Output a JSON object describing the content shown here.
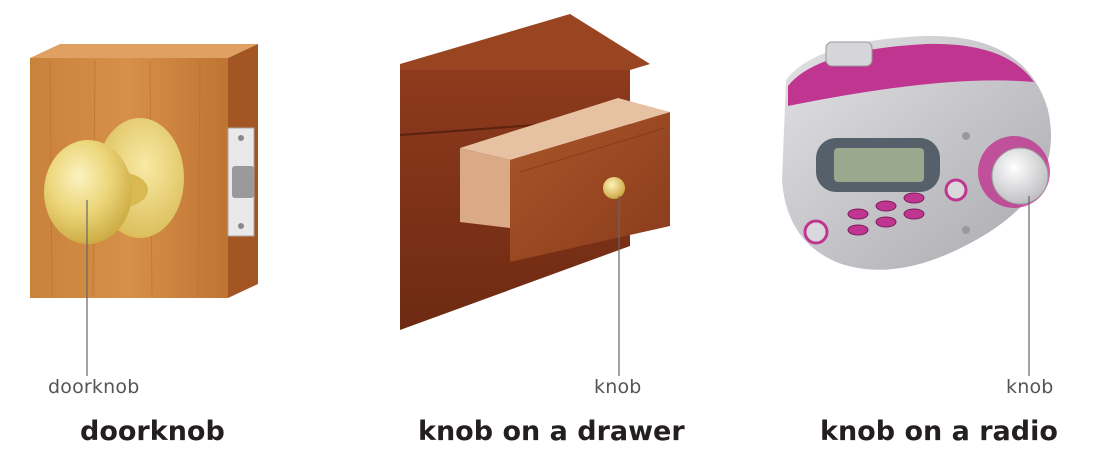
{
  "panels": [
    {
      "callout": "doorknob",
      "caption": "doorknob"
    },
    {
      "callout": "knob",
      "caption": "knob on a drawer"
    },
    {
      "callout": "knob",
      "caption": "knob on a radio"
    }
  ],
  "colors": {
    "wood_light": "#c97a35",
    "wood_dark": "#8a3a1c",
    "brass": "#e9cf6b",
    "radio_silver": "#c8c8cc",
    "radio_accent": "#c0358f",
    "leader_line": "#666666"
  }
}
